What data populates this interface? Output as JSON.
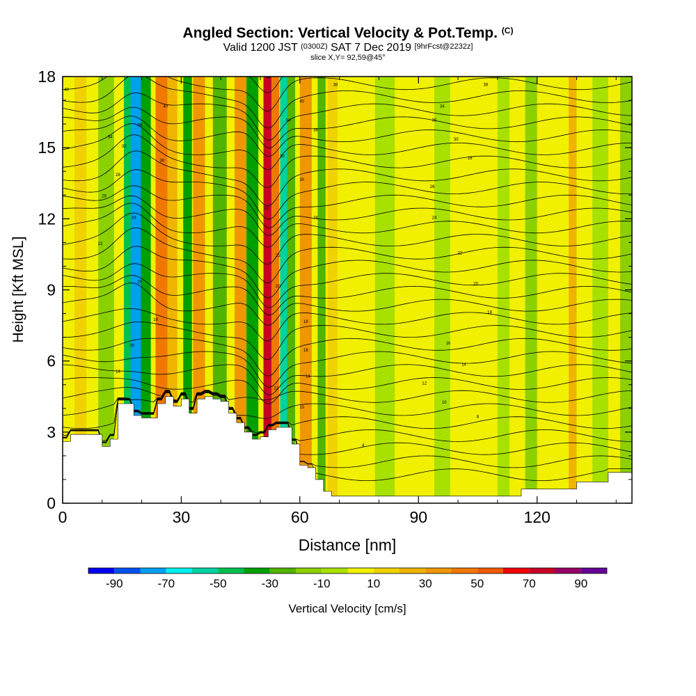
{
  "title": {
    "main": "Angled Section: Vertical Velocity & Pot.Temp.",
    "main_tag": "(C)",
    "valid_prefix": "Valid 1200 JST",
    "valid_utc": "(0300Z)",
    "valid_date": "SAT 7 Dec 2019",
    "forecast": "[9hrFcst@2232z]",
    "slice": "slice X,Y= 92,59@45°"
  },
  "chart_data": {
    "type": "heatmap",
    "xlabel": "Distance [nm]",
    "ylabel": "Height [Kft MSL]",
    "xlim": [
      0,
      144
    ],
    "ylim": [
      0,
      18
    ],
    "x_ticks": [
      0,
      30,
      60,
      90,
      120
    ],
    "x_tick_labels": [
      "0",
      "30",
      "60",
      "90",
      "120"
    ],
    "y_ticks": [
      0,
      3,
      6,
      9,
      12,
      15,
      18
    ],
    "y_tick_labels": [
      "0",
      "3",
      "6",
      "9",
      "12",
      "15",
      "18"
    ],
    "colorbar": {
      "label": "Vertical Velocity [cm/s]",
      "bins": [
        -100,
        -90,
        -80,
        -70,
        -60,
        -50,
        -40,
        -30,
        -20,
        -10,
        0,
        10,
        20,
        30,
        40,
        50,
        60,
        70,
        80,
        90,
        100
      ],
      "tick_values": [
        -90,
        -70,
        -50,
        -30,
        -10,
        10,
        30,
        50,
        70,
        90
      ],
      "tick_labels": [
        "-90",
        "-70",
        "-50",
        "-30",
        "-10",
        "10",
        "30",
        "50",
        "70",
        "90"
      ],
      "colors": [
        "#0000f0",
        "#0050f0",
        "#00a0f0",
        "#00f0f0",
        "#00d2a0",
        "#00c050",
        "#00a000",
        "#50b400",
        "#8cd000",
        "#a8e000",
        "#f0f000",
        "#f0d200",
        "#f0b400",
        "#f09600",
        "#f07800",
        "#f05a00",
        "#f00000",
        "#c80028",
        "#960064",
        "#640096"
      ]
    },
    "vertical_velocity_bands_cm_s": [
      {
        "x_nm": 3,
        "w": 3,
        "value": 15
      },
      {
        "x_nm": 9,
        "w": 4,
        "value": -15
      },
      {
        "x_nm": 15.5,
        "w": 2.2,
        "value": -45
      },
      {
        "x_nm": 17.2,
        "w": 2.8,
        "value": -75
      },
      {
        "x_nm": 19.8,
        "w": 2.5,
        "value": -35
      },
      {
        "x_nm": 23.5,
        "w": 3,
        "value": 40
      },
      {
        "x_nm": 26.5,
        "w": 2.5,
        "value": 20
      },
      {
        "x_nm": 30.5,
        "w": 2.2,
        "value": -40
      },
      {
        "x_nm": 33,
        "w": 3,
        "value": 30
      },
      {
        "x_nm": 38,
        "w": 3.5,
        "value": -25
      },
      {
        "x_nm": 43.5,
        "w": 3,
        "value": 30
      },
      {
        "x_nm": 46.5,
        "w": 3,
        "value": -35
      },
      {
        "x_nm": 50.8,
        "w": 2.2,
        "value": 75
      },
      {
        "x_nm": 52.8,
        "w": 2,
        "value": 40
      },
      {
        "x_nm": 55,
        "w": 2,
        "value": -55
      },
      {
        "x_nm": 56.8,
        "w": 2,
        "value": -25
      },
      {
        "x_nm": 60,
        "w": 3,
        "value": 35
      },
      {
        "x_nm": 64.5,
        "w": 2,
        "value": -30
      },
      {
        "x_nm": 67,
        "w": 2.5,
        "value": 15
      },
      {
        "x_nm": 79,
        "w": 5,
        "value": -10
      },
      {
        "x_nm": 94,
        "w": 4,
        "value": -10
      },
      {
        "x_nm": 110,
        "w": 3,
        "value": -10
      },
      {
        "x_nm": 117,
        "w": 3,
        "value": -12
      },
      {
        "x_nm": 128,
        "w": 2,
        "value": 25
      },
      {
        "x_nm": 134,
        "w": 4,
        "value": -10
      },
      {
        "x_nm": 141,
        "w": 3,
        "value": -15
      }
    ],
    "terrain_kft": {
      "x": [
        0,
        2,
        6,
        10,
        11,
        12,
        14,
        16,
        18,
        20,
        22,
        24,
        26,
        28,
        30,
        32,
        34,
        36,
        38,
        40,
        42,
        44,
        46,
        48,
        50,
        52,
        54,
        56,
        58,
        60,
        62,
        64,
        66,
        68,
        70,
        80,
        90,
        100,
        110,
        114,
        116,
        120,
        125,
        130,
        135,
        138,
        144
      ],
      "y": [
        2.6,
        2.9,
        2.9,
        2.4,
        2.4,
        2.7,
        4.2,
        4.2,
        3.7,
        3.6,
        3.6,
        4.2,
        4.5,
        4.1,
        4.4,
        3.8,
        4.4,
        4.5,
        4.4,
        4.3,
        3.8,
        3.4,
        3.0,
        2.7,
        2.8,
        3.1,
        3.2,
        3.2,
        2.5,
        1.6,
        1.5,
        1.0,
        0.5,
        0.3,
        0.3,
        0.3,
        0.3,
        0.3,
        0.3,
        0.3,
        0.6,
        0.6,
        0.6,
        0.9,
        0.9,
        1.3,
        1.3
      ]
    }
  },
  "isentrope_labels": [
    {
      "text": "40",
      "x_nm": 1,
      "y_kft": 17.4
    },
    {
      "text": "40",
      "x_nm": 26,
      "y_kft": 16.7
    },
    {
      "text": "38",
      "x_nm": 19.5,
      "y_kft": 15.9
    },
    {
      "text": "34",
      "x_nm": 12,
      "y_kft": 15.4
    },
    {
      "text": "32",
      "x_nm": 15.5,
      "y_kft": 15.0
    },
    {
      "text": "30",
      "x_nm": 25.2,
      "y_kft": 14.4
    },
    {
      "text": "28",
      "x_nm": 14,
      "y_kft": 13.8
    },
    {
      "text": "26",
      "x_nm": 10.5,
      "y_kft": 12.9
    },
    {
      "text": "24",
      "x_nm": 18,
      "y_kft": 12.0
    },
    {
      "text": "22",
      "x_nm": 9.5,
      "y_kft": 10.9
    },
    {
      "text": "20",
      "x_nm": 19.5,
      "y_kft": 9.3
    },
    {
      "text": "18",
      "x_nm": 23.5,
      "y_kft": 7.7
    },
    {
      "text": "16",
      "x_nm": 17.5,
      "y_kft": 6.6
    },
    {
      "text": "14",
      "x_nm": 14,
      "y_kft": 5.5
    },
    {
      "text": "38",
      "x_nm": 69,
      "y_kft": 17.6
    },
    {
      "text": "40",
      "x_nm": 60.5,
      "y_kft": 16.9
    },
    {
      "text": "34",
      "x_nm": 57,
      "y_kft": 16.1
    },
    {
      "text": "36",
      "x_nm": 64,
      "y_kft": 15.7
    },
    {
      "text": "30",
      "x_nm": 55.5,
      "y_kft": 14.6
    },
    {
      "text": "30",
      "x_nm": 60.5,
      "y_kft": 13.6
    },
    {
      "text": "24",
      "x_nm": 51.5,
      "y_kft": 12.4
    },
    {
      "text": "24",
      "x_nm": 64,
      "y_kft": 12.0
    },
    {
      "text": "22",
      "x_nm": 54.5,
      "y_kft": 10.4
    },
    {
      "text": "20",
      "x_nm": 54.5,
      "y_kft": 9.1
    },
    {
      "text": "18",
      "x_nm": 61.5,
      "y_kft": 7.6
    },
    {
      "text": "16",
      "x_nm": 61.5,
      "y_kft": 6.4
    },
    {
      "text": "14",
      "x_nm": 62,
      "y_kft": 5.3
    },
    {
      "text": "12",
      "x_nm": 54,
      "y_kft": 4.8
    },
    {
      "text": "10",
      "x_nm": 60.5,
      "y_kft": 4.0
    },
    {
      "text": "38",
      "x_nm": 107,
      "y_kft": 17.6
    },
    {
      "text": "34",
      "x_nm": 96,
      "y_kft": 16.7
    },
    {
      "text": "36",
      "x_nm": 94,
      "y_kft": 16.1
    },
    {
      "text": "30",
      "x_nm": 99.5,
      "y_kft": 15.3
    },
    {
      "text": "28",
      "x_nm": 103,
      "y_kft": 14.5
    },
    {
      "text": "26",
      "x_nm": 93.5,
      "y_kft": 13.3
    },
    {
      "text": "24",
      "x_nm": 94,
      "y_kft": 12.0
    },
    {
      "text": "22",
      "x_nm": 100.5,
      "y_kft": 10.5
    },
    {
      "text": "20",
      "x_nm": 104.5,
      "y_kft": 9.2
    },
    {
      "text": "18",
      "x_nm": 108,
      "y_kft": 8.0
    },
    {
      "text": "16",
      "x_nm": 97.5,
      "y_kft": 6.7
    },
    {
      "text": "14",
      "x_nm": 101.5,
      "y_kft": 5.8
    },
    {
      "text": "12",
      "x_nm": 91.5,
      "y_kft": 5.0
    },
    {
      "text": "10",
      "x_nm": 96.5,
      "y_kft": 4.2
    },
    {
      "text": "8",
      "x_nm": 105,
      "y_kft": 3.6
    },
    {
      "text": "4",
      "x_nm": 76,
      "y_kft": 2.4
    }
  ]
}
